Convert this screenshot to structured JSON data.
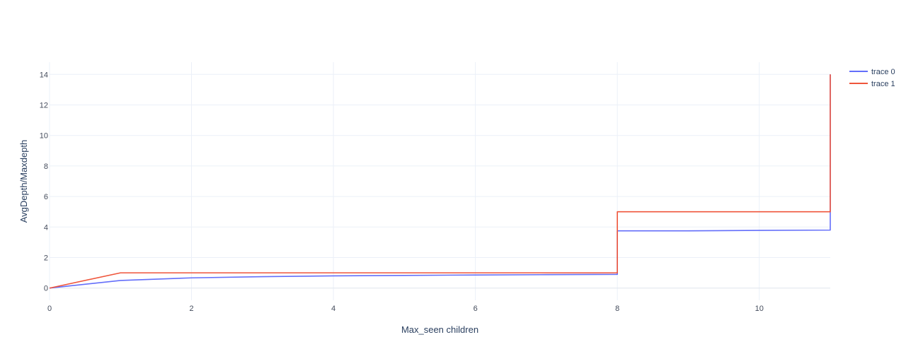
{
  "chart_data": {
    "type": "line",
    "xlabel": "Max_seen children",
    "ylabel": "AvgDepth/Maxdepth",
    "xlim": [
      0,
      11
    ],
    "ylim": [
      -0.8,
      14.8
    ],
    "x_ticks": [
      0,
      2,
      4,
      6,
      8,
      10
    ],
    "y_ticks": [
      0,
      2,
      4,
      6,
      8,
      10,
      12,
      14
    ],
    "grid": true,
    "legend_position": "top-right",
    "series": [
      {
        "name": "trace 0",
        "color": "#636efa",
        "x": [
          0,
          1,
          2,
          3,
          4,
          5,
          6,
          7,
          8,
          8,
          9,
          10,
          11,
          11
        ],
        "y": [
          0,
          0.5,
          0.67,
          0.75,
          0.8,
          0.83,
          0.86,
          0.88,
          0.9,
          3.75,
          3.75,
          3.78,
          3.8,
          14
        ]
      },
      {
        "name": "trace 1",
        "color": "#ef553b",
        "x": [
          0,
          1,
          2,
          3,
          4,
          5,
          6,
          7,
          8,
          8,
          9,
          10,
          11,
          11
        ],
        "y": [
          0,
          1,
          1,
          1,
          1,
          1,
          1,
          1,
          1,
          5,
          5,
          5,
          5,
          14
        ]
      }
    ]
  }
}
